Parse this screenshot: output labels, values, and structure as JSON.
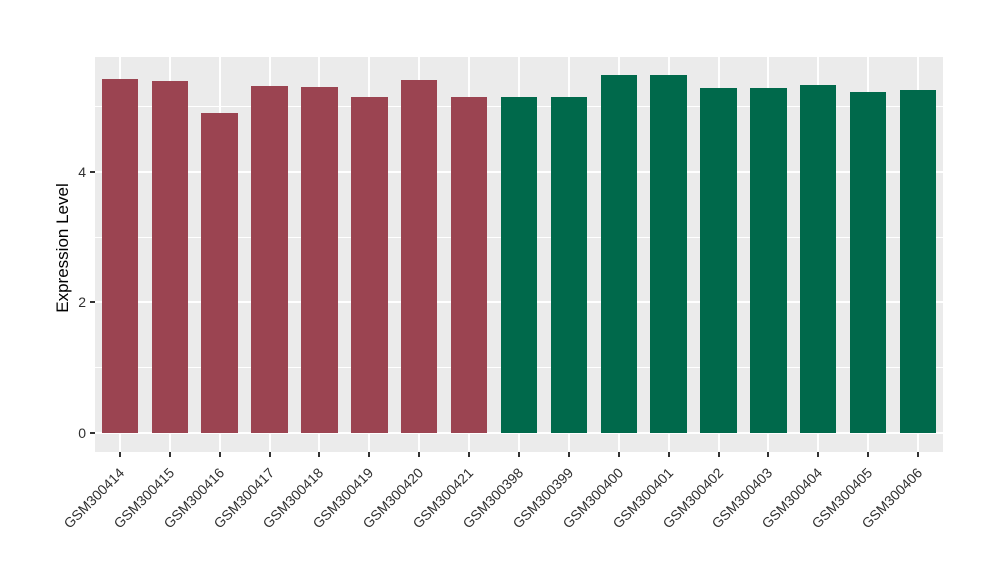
{
  "figure": {
    "background_color": "#FFFFFF",
    "panel_background_color": "#EBEBEB",
    "gridline_color": "#FFFFFF",
    "tick_mark_color": "#333333",
    "axis_text_color": "#303030"
  },
  "chart_data": {
    "type": "bar",
    "title": "",
    "xlabel": "",
    "ylabel": "Expression Level",
    "ylim": [
      -0.29,
      5.76
    ],
    "yticks": [
      0,
      2,
      4
    ],
    "yticks_minor": [
      1,
      3,
      5
    ],
    "grid": true,
    "legend_position": "none",
    "categories": [
      "GSM300414",
      "GSM300415",
      "GSM300416",
      "GSM300417",
      "GSM300418",
      "GSM300419",
      "GSM300420",
      "GSM300421",
      "GSM300398",
      "GSM300399",
      "GSM300400",
      "GSM300401",
      "GSM300402",
      "GSM300403",
      "GSM300404",
      "GSM300405",
      "GSM300406"
    ],
    "values": [
      5.43,
      5.4,
      4.9,
      5.31,
      5.3,
      5.15,
      5.41,
      5.14,
      5.14,
      5.14,
      5.48,
      5.48,
      5.28,
      5.29,
      5.33,
      5.23,
      5.26
    ],
    "groups": [
      "group1",
      "group1",
      "group1",
      "group1",
      "group1",
      "group1",
      "group1",
      "group1",
      "group2",
      "group2",
      "group2",
      "group2",
      "group2",
      "group2",
      "group2",
      "group2",
      "group2"
    ],
    "group_colors": {
      "group1": "#9B4451",
      "group2": "#00694B"
    },
    "bar_width_fraction": 0.73
  }
}
